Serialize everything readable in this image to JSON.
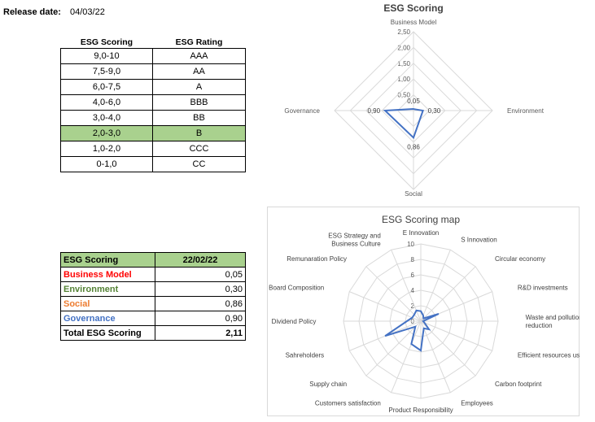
{
  "release": {
    "label": "Release date:",
    "date": "04/03/22"
  },
  "rating_table": {
    "headers": [
      "ESG Scoring",
      "ESG Rating"
    ],
    "rows": [
      [
        "9,0-10",
        "AAA"
      ],
      [
        "7,5-9,0",
        "AA"
      ],
      [
        "6,0-7,5",
        "A"
      ],
      [
        "4,0-6,0",
        "BBB"
      ],
      [
        "3,0-4,0",
        "BB"
      ],
      [
        "2,0-3,0",
        "B"
      ],
      [
        "1,0-2,0",
        "CCC"
      ],
      [
        "0-1,0",
        "CC"
      ]
    ],
    "highlight_color": "#a9d18e"
  },
  "score_table": {
    "header": [
      "ESG Scoring",
      "22/02/22"
    ],
    "rows": [
      {
        "label": "Business Model",
        "value": "0,05",
        "color": "#ff0000"
      },
      {
        "label": "Environment",
        "value": "0,30",
        "color": "#548235"
      },
      {
        "label": "Social",
        "value": "0,86",
        "color": "#ed7d31"
      },
      {
        "label": "Governance",
        "value": "0,90",
        "color": "#4472c4"
      }
    ],
    "total": {
      "label": "Total ESG Scoring",
      "value": "2,11"
    }
  },
  "chart_data": [
    {
      "type": "radar",
      "title": "ESG Scoring",
      "categories": [
        "Business Model",
        "Environment",
        "Social",
        "Governance"
      ],
      "values": [
        0.05,
        0.3,
        0.86,
        0.9
      ],
      "value_labels": [
        "0,05",
        "0,30",
        "0,86",
        "0,90"
      ],
      "rlim": [
        0,
        2.5
      ],
      "ticks": [
        "0,50",
        "1,00",
        "1,50",
        "2,00",
        "2,50"
      ],
      "tick_values": [
        0.5,
        1.0,
        1.5,
        2.0,
        2.5
      ],
      "line_color": "#4472c4",
      "grid_color": "#d9d9d9"
    },
    {
      "type": "radar",
      "title": "ESG Scoring map",
      "categories": [
        "E Innovation",
        "S Innovation",
        "Circular economy",
        "R&D investments",
        "Waste and pollution reduction",
        "Efficient resources use",
        "Carbon footprint",
        "Employees",
        "Product Responsibility",
        "Customers satisfaction",
        "Supply chain",
        "Sahreholders",
        "Dividend Policy",
        "Board Composition",
        "Remunaration Policy",
        "ESG Strategy and Business Culture"
      ],
      "category_lines": [
        [
          "E Innovation"
        ],
        [
          "S Innovation"
        ],
        [
          "Circular economy"
        ],
        [
          "R&D investments"
        ],
        [
          "Waste and pollution",
          "reduction"
        ],
        [
          "Efficient resources use"
        ],
        [
          "Carbon footprint"
        ],
        [
          "Employees"
        ],
        [
          "Product Responsibility"
        ],
        [
          "Customers satisfaction"
        ],
        [
          "Supply chain"
        ],
        [
          "Sahreholders"
        ],
        [
          "Dividend Policy"
        ],
        [
          "Board Composition"
        ],
        [
          "Remunaration Policy"
        ],
        [
          "ESG Strategy and",
          "Business Culture"
        ]
      ],
      "values": [
        1.3,
        0.8,
        0.5,
        2.5,
        0.3,
        0.5,
        1.5,
        1.0,
        3.8,
        3.2,
        1.0,
        5.0,
        1.8,
        1.2,
        1.2,
        1.5
      ],
      "rlim": [
        0,
        10
      ],
      "ticks": [
        "0",
        "2",
        "4",
        "6",
        "8",
        "10"
      ],
      "tick_values": [
        0,
        2,
        4,
        6,
        8,
        10
      ],
      "line_color": "#4472c4",
      "grid_color": "#d9d9d9"
    }
  ]
}
